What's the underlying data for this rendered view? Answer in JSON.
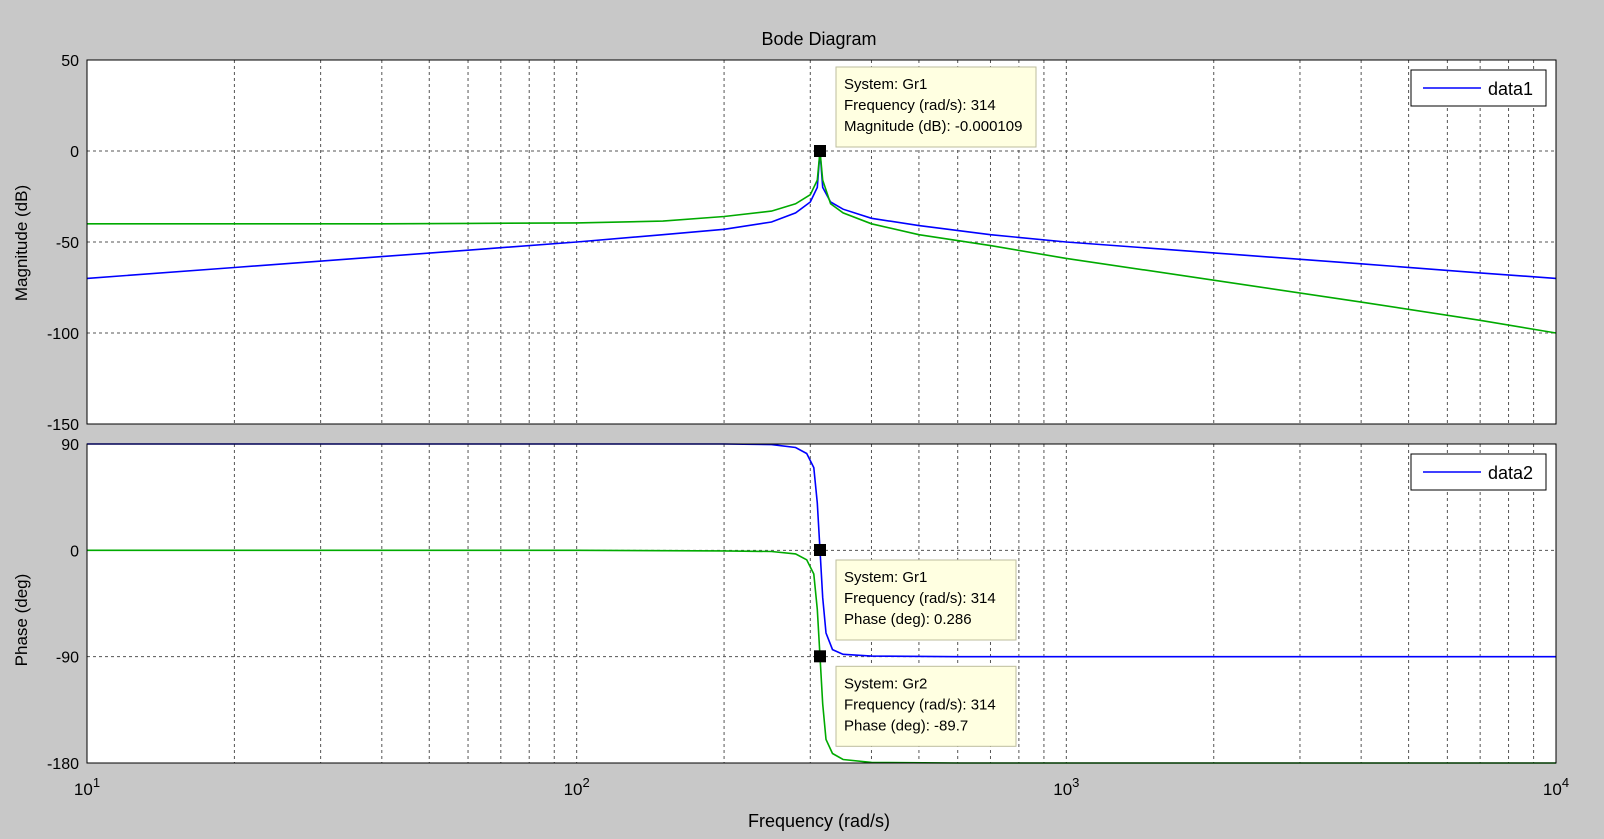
{
  "figure": {
    "title": "Bode Diagram",
    "xlabel": "Frequency  (rad/s)"
  },
  "colors": {
    "background": "#c8c8c8",
    "axes": "#ffffff",
    "series1": "#0000ff",
    "series2": "#00aa00",
    "datatip": "#ffffe1"
  },
  "chart_data": [
    {
      "type": "line",
      "panel": "magnitude",
      "xscale": "log",
      "xlim": [
        10,
        10000
      ],
      "ylim": [
        -150,
        50
      ],
      "yticks": [
        50,
        0,
        -50,
        -100,
        -150
      ],
      "ylabel": "Magnitude (dB)",
      "grid": true,
      "legend": {
        "position": "top-right",
        "entries": [
          "data1"
        ]
      },
      "series": [
        {
          "name": "data1",
          "color": "#0000ff",
          "x": [
            10,
            20,
            40,
            60,
            100,
            150,
            200,
            250,
            280,
            300,
            310,
            314,
            318,
            330,
            350,
            400,
            500,
            700,
            1000,
            2000,
            4000,
            7000,
            10000
          ],
          "y": [
            -70,
            -64,
            -58,
            -54.5,
            -50,
            -46,
            -43,
            -39,
            -34,
            -28,
            -20,
            0,
            -20,
            -28,
            -32,
            -37,
            -41,
            -46,
            -50,
            -56,
            -62,
            -67,
            -70
          ]
        },
        {
          "color": "#00aa00",
          "x": [
            10,
            40,
            60,
            100,
            150,
            200,
            250,
            280,
            300,
            310,
            314,
            318,
            330,
            350,
            400,
            500,
            700,
            1000,
            2000,
            4000,
            7000,
            10000
          ],
          "y": [
            -40,
            -40,
            -39.8,
            -39.5,
            -38.5,
            -36,
            -33,
            -29,
            -24,
            -16,
            0,
            -16,
            -29,
            -34,
            -40,
            -46,
            -52,
            -59,
            -71,
            -83,
            -93,
            -100
          ]
        }
      ],
      "annotations": [
        {
          "anchor_x": 314,
          "anchor_y": 0,
          "lines": [
            "System: Gr1",
            "Frequency (rad/s): 314",
            "Magnitude (dB): -0.000109"
          ]
        }
      ]
    },
    {
      "type": "line",
      "panel": "phase",
      "xscale": "log",
      "xlim": [
        10,
        10000
      ],
      "ylim": [
        -180,
        90
      ],
      "yticks": [
        90,
        0,
        -90,
        -180
      ],
      "ylabel": "Phase (deg)",
      "grid": true,
      "legend": {
        "position": "top-right",
        "entries": [
          "data2"
        ]
      },
      "series": [
        {
          "name": "data2",
          "color": "#0000ff",
          "x": [
            10,
            100,
            200,
            250,
            280,
            295,
            305,
            310,
            314,
            318,
            323,
            333,
            350,
            400,
            600,
            10000
          ],
          "y": [
            90,
            90,
            90,
            89.5,
            87,
            82,
            70,
            40,
            0.286,
            -40,
            -70,
            -84,
            -88,
            -89.5,
            -90,
            -90
          ]
        },
        {
          "color": "#00aa00",
          "x": [
            10,
            100,
            200,
            250,
            280,
            295,
            305,
            310,
            314,
            318,
            323,
            333,
            350,
            400,
            600,
            10000
          ],
          "y": [
            0,
            0,
            -0.5,
            -1,
            -3,
            -8,
            -20,
            -50,
            -89.7,
            -130,
            -160,
            -172,
            -177,
            -179.5,
            -180,
            -180
          ]
        }
      ],
      "annotations": [
        {
          "anchor_x": 314,
          "anchor_y": 0.286,
          "lines": [
            "System: Gr1",
            "Frequency (rad/s): 314",
            "Phase (deg): 0.286"
          ]
        },
        {
          "anchor_x": 314,
          "anchor_y": -89.7,
          "lines": [
            "System: Gr2",
            "Frequency (rad/s): 314",
            "Phase (deg): -89.7"
          ]
        }
      ]
    }
  ],
  "xticks": [
    {
      "value": 10,
      "base": "10",
      "exp": "1"
    },
    {
      "value": 100,
      "base": "10",
      "exp": "2"
    },
    {
      "value": 1000,
      "base": "10",
      "exp": "3"
    },
    {
      "value": 10000,
      "base": "10",
      "exp": "4"
    }
  ]
}
